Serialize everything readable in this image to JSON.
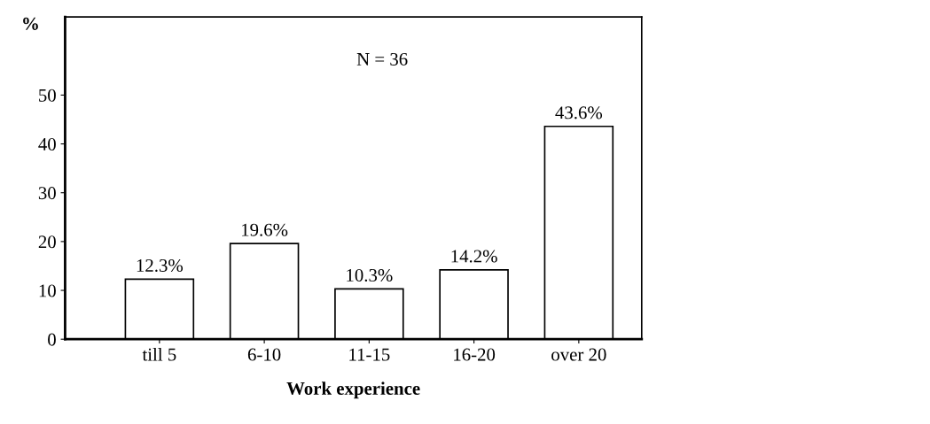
{
  "chart_data": {
    "type": "bar",
    "xlabel": "Work experience",
    "ylabel": "%",
    "categories": [
      "till 5",
      "6-10",
      "11-15",
      "16-20",
      "over 20"
    ],
    "values": [
      12.3,
      19.6,
      10.3,
      14.2,
      43.6
    ],
    "value_labels": [
      "12.3%",
      "19.6%",
      "10.3%",
      "14.2%",
      "43.6%"
    ],
    "color": "#ffffff",
    "ylim": [
      0,
      66
    ],
    "yticks": [
      0,
      10,
      20,
      30,
      40,
      50
    ],
    "annotations": [
      "N = 36"
    ],
    "grid": false
  }
}
